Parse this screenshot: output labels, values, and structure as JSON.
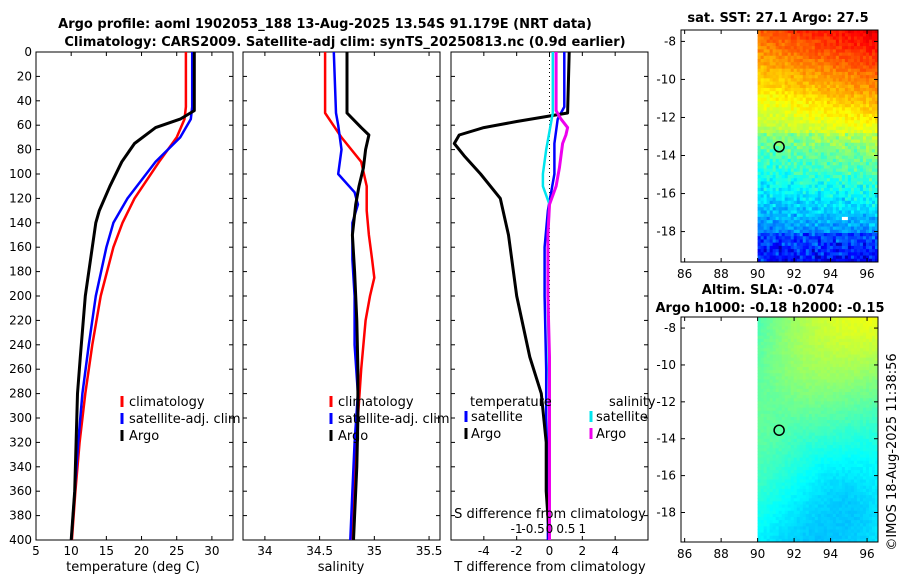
{
  "title": {
    "line1": "Argo profile: aoml 1902053_188 13-Aug-2025 13.54S 91.179E (NRT data)",
    "line2": "Climatology: CARS2009. Satellite-adj clim: synTS_20250813.nc (0.9d earlier)"
  },
  "timestamp": "©IMOS 18-Aug-2025 11:38:56",
  "colors": {
    "climatology": "#ff0000",
    "satellite": "#0000ff",
    "argo": "#000000",
    "sal_satellite": "#00e5ee",
    "sal_argo": "#ee00ee",
    "float_marker": "#000000"
  },
  "chart_data": [
    {
      "id": "temperature",
      "type": "line",
      "xlabel": "temperature (deg C)",
      "ylabel": "depth",
      "xlim": [
        5,
        33
      ],
      "ylim": [
        400,
        0
      ],
      "xticks": [
        5,
        10,
        15,
        20,
        25,
        30
      ],
      "yticks": [
        0,
        20,
        40,
        60,
        80,
        100,
        120,
        140,
        160,
        180,
        200,
        220,
        240,
        260,
        280,
        300,
        320,
        340,
        360,
        380,
        400
      ],
      "legend": [
        "climatology",
        "satellite-adj. clim",
        "Argo"
      ],
      "series": [
        {
          "name": "climatology",
          "color": "#ff0000",
          "depth": [
            0,
            45,
            55,
            70,
            90,
            120,
            140,
            160,
            200,
            240,
            280,
            320,
            360,
            400
          ],
          "values": [
            26.3,
            26.3,
            26.1,
            25.0,
            22.5,
            19.0,
            17.3,
            16.0,
            14.2,
            13.0,
            12.0,
            11.2,
            10.6,
            10.1
          ]
        },
        {
          "name": "satellite-adj. clim",
          "color": "#0000ff",
          "depth": [
            0,
            45,
            55,
            70,
            90,
            120,
            140,
            160,
            200,
            240,
            280,
            320,
            360,
            400
          ],
          "values": [
            27.2,
            27.2,
            27.0,
            25.5,
            22.0,
            18.0,
            16.0,
            15.0,
            13.5,
            12.5,
            11.6,
            11.0,
            10.5,
            10.0
          ]
        },
        {
          "name": "Argo",
          "color": "#000000",
          "depth": [
            0,
            48,
            55,
            62,
            75,
            90,
            110,
            130,
            140,
            160,
            200,
            250,
            280,
            320,
            360,
            400
          ],
          "values": [
            27.5,
            27.5,
            25.5,
            22.0,
            19.0,
            17.2,
            15.5,
            14.0,
            13.5,
            13.0,
            12.0,
            11.3,
            10.9,
            10.7,
            10.5,
            10.0
          ]
        }
      ]
    },
    {
      "id": "salinity",
      "type": "line",
      "xlabel": "salinity",
      "xlim": [
        33.8,
        35.6
      ],
      "ylim": [
        400,
        0
      ],
      "xticks": [
        34,
        34.5,
        35,
        35.5
      ],
      "legend": [
        "climatology",
        "satellite-adj. clim",
        "Argo"
      ],
      "series": [
        {
          "name": "climatology",
          "color": "#ff0000",
          "depth": [
            0,
            50,
            70,
            90,
            110,
            130,
            150,
            170,
            185,
            200,
            220,
            260,
            300,
            340,
            380,
            400
          ],
          "values": [
            34.55,
            34.55,
            34.7,
            34.88,
            34.93,
            34.93,
            34.95,
            34.98,
            35.0,
            34.96,
            34.92,
            34.88,
            34.85,
            34.82,
            34.8,
            34.8
          ]
        },
        {
          "name": "satellite-adj. clim",
          "color": "#0000ff",
          "depth": [
            0,
            50,
            60,
            80,
            100,
            115,
            125,
            140,
            170,
            200,
            240,
            280,
            320,
            360,
            400
          ],
          "values": [
            34.63,
            34.65,
            34.67,
            34.7,
            34.67,
            34.82,
            34.85,
            34.8,
            34.8,
            34.82,
            34.82,
            34.85,
            34.82,
            34.8,
            34.78
          ]
        },
        {
          "name": "Argo",
          "color": "#000000",
          "depth": [
            0,
            50,
            62,
            68,
            80,
            95,
            110,
            125,
            150,
            180,
            220,
            260,
            300,
            340,
            380,
            400
          ],
          "values": [
            34.75,
            34.75,
            34.88,
            34.95,
            34.92,
            34.9,
            34.86,
            34.83,
            34.8,
            34.82,
            34.84,
            34.85,
            34.85,
            34.84,
            34.82,
            34.81
          ]
        }
      ]
    },
    {
      "id": "difference",
      "type": "line",
      "xlabel": "T difference from climatology",
      "top_label": "S difference from climatology",
      "xlim": [
        -6,
        6
      ],
      "ylim": [
        400,
        0
      ],
      "xticks": [
        -4,
        -2,
        0,
        2,
        4
      ],
      "s_tick_values": [
        -1,
        -0.5,
        0,
        0.5,
        1
      ],
      "s_tick_labels": [
        "-1",
        "-0.5",
        "0",
        "0.5",
        "1"
      ],
      "legend_temperature_title": "temperature",
      "legend_salinity_title": "salinity",
      "legend_temperature": [
        "satellite",
        "Argo"
      ],
      "legend_salinity": [
        "satellite",
        "Argo"
      ],
      "series": [
        {
          "name": "temperature satellite",
          "color": "#0000ff",
          "depth": [
            0,
            45,
            55,
            75,
            100,
            130,
            160,
            200,
            260,
            300,
            350,
            400
          ],
          "values": [
            0.9,
            0.9,
            0.5,
            0.3,
            0.3,
            -0.1,
            -0.3,
            -0.3,
            -0.2,
            -0.2,
            -0.1,
            -0.1
          ]
        },
        {
          "name": "temperature Argo",
          "color": "#000000",
          "depth": [
            0,
            50,
            57,
            62,
            68,
            75,
            85,
            100,
            120,
            150,
            200,
            250,
            280,
            320,
            360,
            400
          ],
          "values": [
            1.2,
            1.1,
            -2.0,
            -4.0,
            -5.5,
            -5.8,
            -5.2,
            -4.2,
            -3.0,
            -2.5,
            -2.0,
            -1.2,
            -0.5,
            -0.2,
            -0.2,
            0.0
          ]
        },
        {
          "name": "salinity satellite",
          "color": "#00e5ee",
          "depth": [
            0,
            50,
            65,
            80,
            100,
            110,
            125,
            150,
            200,
            260,
            300,
            350,
            400
          ],
          "values": [
            0.1,
            0.1,
            0.0,
            -0.1,
            -0.2,
            -0.2,
            0.0,
            -0.05,
            -0.05,
            -0.02,
            0.0,
            0.0,
            0.0
          ]
        },
        {
          "name": "salinity Argo",
          "color": "#ee00ee",
          "depth": [
            0,
            48,
            55,
            62,
            68,
            75,
            85,
            95,
            110,
            125,
            150,
            200,
            250,
            300,
            350,
            400
          ],
          "values": [
            0.2,
            0.2,
            0.35,
            0.55,
            0.5,
            0.4,
            0.35,
            0.3,
            0.2,
            0.0,
            -0.05,
            -0.05,
            0.0,
            0.0,
            0.0,
            0.0
          ]
        }
      ]
    },
    {
      "id": "sst_map",
      "type": "heatmap",
      "title": "sat. SST: 27.1 Argo: 27.5",
      "xlim": [
        85.8,
        96.6
      ],
      "ylim": [
        -19.6,
        -7.4
      ],
      "xticks": [
        86,
        88,
        90,
        92,
        94,
        96
      ],
      "yticks": [
        -8,
        -10,
        -12,
        -14,
        -16,
        -18
      ],
      "data_lon_range": [
        90,
        96.6
      ],
      "float": {
        "lon": 91.179,
        "lat": -13.54
      }
    },
    {
      "id": "sla_map",
      "type": "heatmap",
      "title": "Altim. SLA: -0.074",
      "subtitle": "Argo h1000: -0.18 h2000: -0.15",
      "xlim": [
        85.8,
        96.6
      ],
      "ylim": [
        -19.6,
        -7.4
      ],
      "xticks": [
        86,
        88,
        90,
        92,
        94,
        96
      ],
      "yticks": [
        -8,
        -10,
        -12,
        -14,
        -16,
        -18
      ],
      "data_lon_range": [
        90,
        96.6
      ],
      "float": {
        "lon": 91.179,
        "lat": -13.54
      }
    }
  ]
}
